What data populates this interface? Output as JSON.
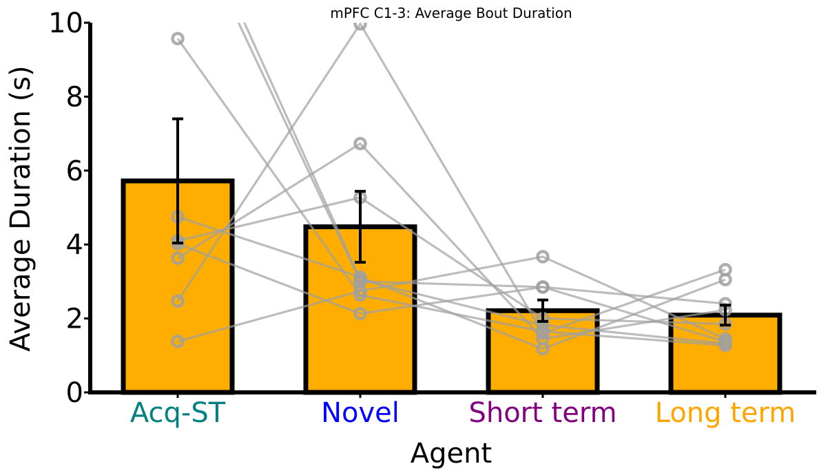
{
  "chart_data": {
    "type": "bar",
    "title": "mPFC C1-3: Average Bout Duration",
    "xlabel": "Agent",
    "ylabel": "Average Duration (s)",
    "ylim": [
      0,
      10
    ],
    "yticks": [
      "0",
      "2",
      "4",
      "6",
      "8",
      "10"
    ],
    "categories": [
      "Acq-ST",
      "Novel",
      "Short term",
      "Long term"
    ],
    "category_colors": [
      "#008080",
      "#0000ff",
      "#800080",
      "#ffa500"
    ],
    "bar_color": "#ffae00",
    "values": [
      5.72,
      4.48,
      2.21,
      2.09
    ],
    "errors": [
      1.68,
      0.96,
      0.29,
      0.27
    ],
    "subjects": [
      [
        9.57,
        2.63,
        1.65,
        1.27
      ],
      [
        13.5,
        3.0,
        2.85,
        1.37
      ],
      [
        4.1,
        5.27,
        2.0,
        1.85
      ],
      [
        1.38,
        2.74,
        3.67,
        1.45
      ],
      [
        2.47,
        9.97,
        1.6,
        3.32
      ],
      [
        4.75,
        3.12,
        1.18,
        3.05
      ],
      [
        3.63,
        6.73,
        1.45,
        2.23
      ],
      [
        4.02,
        2.13,
        2.85,
        2.4
      ],
      [
        14.0,
        3.05,
        1.82,
        1.32
      ]
    ],
    "subject_color": "#a0a0a0",
    "grid": false,
    "legend": "none"
  }
}
